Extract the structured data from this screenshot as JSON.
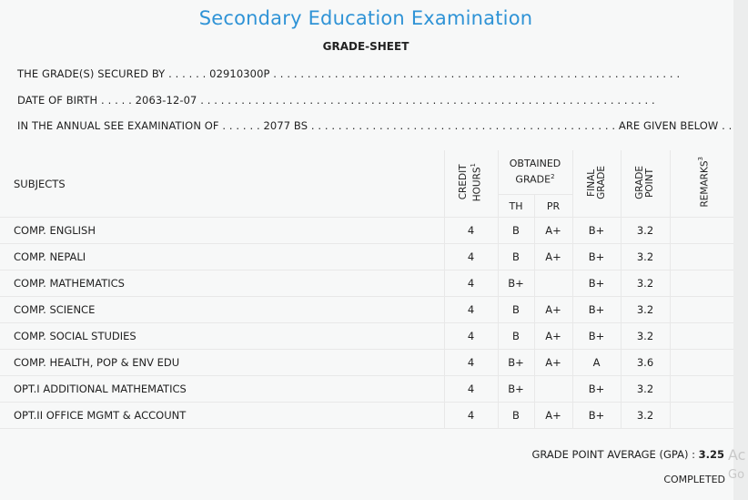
{
  "header": {
    "title": "Secondary Education Examination",
    "subtitle": "GRADE-SHEET"
  },
  "student": {
    "line1_label": "THE GRADE(S) SECURED BY . . . . . .",
    "symbol_no": "02910300P",
    "line1_tail": ". . . . . . . . . . . . . . . . . . . . . . . . . . . . . . . . . . . . . . . . . . . . . . . . . . . . . . . . . . . .",
    "line2_label": "DATE OF BIRTH . . . . .",
    "dob": "2063-12-07",
    "line2_tail": ". . . . . . . . . . . . . . . . . . . . . . . . . . . . . . . . . . . . . . . . . . . . . . . . . . . . . . . . . . . . . . . . . . .",
    "line3_label": "IN THE ANNUAL SEE EXAMINATION OF . . . . . .",
    "exam_year": "2077 BS",
    "line3_tail": ". . . . . . . . . . . . . . . . . . . . . . . . . . . . . . . . . . . . . . . . . . . . . ARE GIVEN BELOW . . ."
  },
  "table": {
    "headers": {
      "subjects": "SUBJECTS",
      "credit_hours_1": "CREDIT",
      "credit_hours_2": "HOURS",
      "credit_sup": "1",
      "obtained_1": "OBTAINED",
      "obtained_2": "GRADE",
      "obtained_sup": "2",
      "th": "TH",
      "pr": "PR",
      "final_1": "FINAL",
      "final_2": "GRADE",
      "gp_1": "GRADE",
      "gp_2": "POINT",
      "remarks": "REMARKS",
      "remarks_sup": "3"
    },
    "rows": [
      {
        "subject": "COMP. ENGLISH",
        "credit": "4",
        "th": "B",
        "pr": "A+",
        "final": "B+",
        "gp": "3.2"
      },
      {
        "subject": "COMP. NEPALI",
        "credit": "4",
        "th": "B",
        "pr": "A+",
        "final": "B+",
        "gp": "3.2"
      },
      {
        "subject": "COMP. MATHEMATICS",
        "credit": "4",
        "th": "B+",
        "pr": "",
        "final": "B+",
        "gp": "3.2"
      },
      {
        "subject": "COMP. SCIENCE",
        "credit": "4",
        "th": "B",
        "pr": "A+",
        "final": "B+",
        "gp": "3.2"
      },
      {
        "subject": "COMP. SOCIAL STUDIES",
        "credit": "4",
        "th": "B",
        "pr": "A+",
        "final": "B+",
        "gp": "3.2"
      },
      {
        "subject": "COMP. HEALTH, POP & ENV EDU",
        "credit": "4",
        "th": "B+",
        "pr": "A+",
        "final": "A",
        "gp": "3.6"
      },
      {
        "subject": "OPT.I ADDITIONAL MATHEMATICS",
        "credit": "4",
        "th": "B+",
        "pr": "",
        "final": "B+",
        "gp": "3.2"
      },
      {
        "subject": "OPT.II OFFICE MGMT & ACCOUNT",
        "credit": "4",
        "th": "B",
        "pr": "A+",
        "final": "B+",
        "gp": "3.2"
      }
    ]
  },
  "summary": {
    "gpa_label": "GRADE POINT AVERAGE (GPA) :",
    "gpa_value": "3.25",
    "status": "COMPLETED"
  },
  "overlay": {
    "ghost_1": "Ac",
    "ghost_2": "Go"
  }
}
